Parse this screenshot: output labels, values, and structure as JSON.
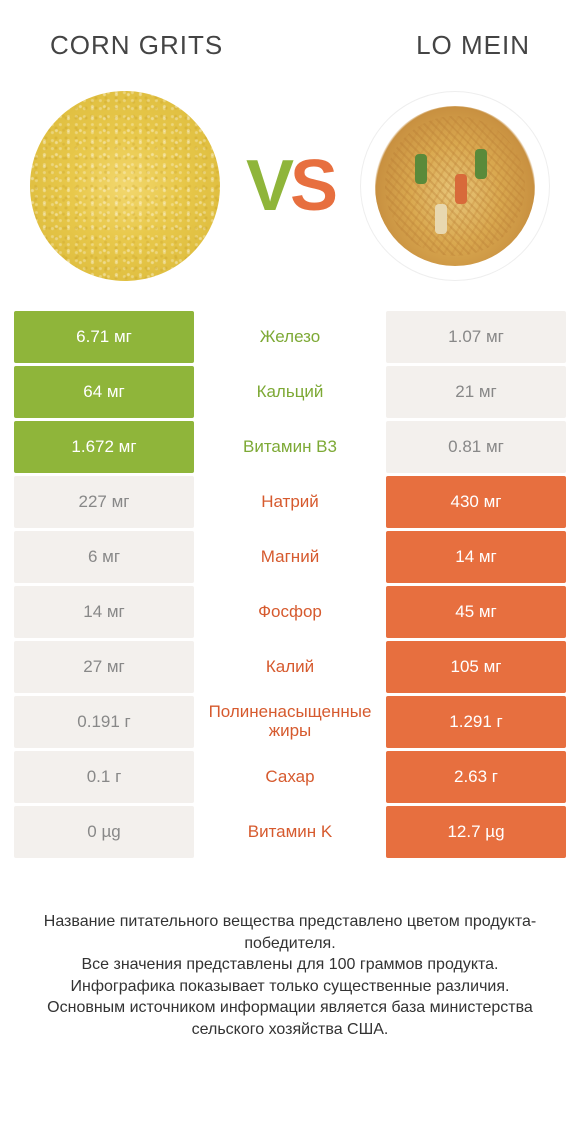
{
  "colors": {
    "green": "#8fb53a",
    "orange": "#e76f3f",
    "green_text": "#7da935",
    "orange_text": "#d65a2e",
    "neutral_bg": "#f3f0ed"
  },
  "header": {
    "left_title": "Corn grits",
    "right_title": "Lo mein",
    "vs_v": "V",
    "vs_s": "S"
  },
  "table": {
    "rows": [
      {
        "left": "6.71 мг",
        "label": "Железо",
        "right": "1.07 мг",
        "winner": "left"
      },
      {
        "left": "64 мг",
        "label": "Кальций",
        "right": "21 мг",
        "winner": "left"
      },
      {
        "left": "1.672 мг",
        "label": "Витамин B3",
        "right": "0.81 мг",
        "winner": "left"
      },
      {
        "left": "227 мг",
        "label": "Натрий",
        "right": "430 мг",
        "winner": "right"
      },
      {
        "left": "6 мг",
        "label": "Магний",
        "right": "14 мг",
        "winner": "right"
      },
      {
        "left": "14 мг",
        "label": "Фосфор",
        "right": "45 мг",
        "winner": "right"
      },
      {
        "left": "27 мг",
        "label": "Калий",
        "right": "105 мг",
        "winner": "right"
      },
      {
        "left": "0.191 г",
        "label": "Полиненасыщенные жиры",
        "right": "1.291 г",
        "winner": "right"
      },
      {
        "left": "0.1 г",
        "label": "Сахар",
        "right": "2.63 г",
        "winner": "right"
      },
      {
        "left": "0 µg",
        "label": "Витамин K",
        "right": "12.7 µg",
        "winner": "right"
      }
    ]
  },
  "footer": {
    "line1": "Название питательного вещества представлено цветом продукта-победителя.",
    "line2": "Все значения представлены для 100 граммов продукта.",
    "line3": "Инфографика показывает только существенные различия.",
    "line4": "Основным источником информации является база министерства сельского хозяйства США."
  }
}
